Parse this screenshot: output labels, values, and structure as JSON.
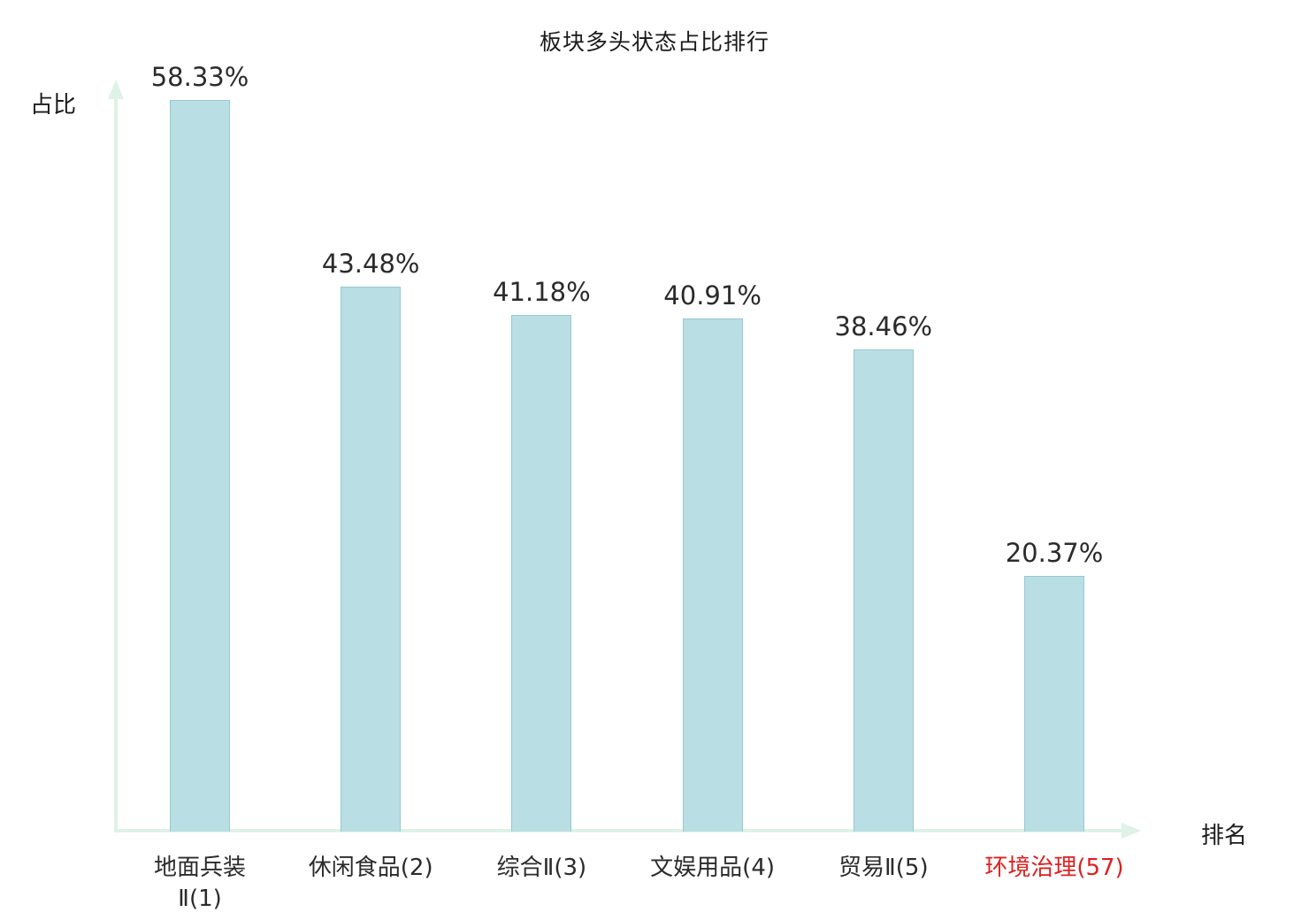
{
  "chart_data": {
    "type": "bar",
    "title": "板块多头状态占比排行",
    "ylabel": "占比",
    "xlabel": "排名",
    "categories": [
      "地面兵装\nⅡ(1)",
      "休闲食品(2)",
      "综合Ⅱ(3)",
      "文娱用品(4)",
      "贸易Ⅱ(5)",
      "环境治理(57)"
    ],
    "values": [
      58.33,
      43.48,
      41.18,
      40.91,
      38.46,
      20.37
    ],
    "value_labels": [
      "58.33%",
      "43.48%",
      "41.18%",
      "40.91%",
      "38.46%",
      "20.37%"
    ],
    "highlight_index": 5,
    "ylim": [
      0,
      61
    ],
    "grid": false,
    "legend": false,
    "colors": {
      "bar_fill": "#b9dee3",
      "bar_border": "#96cad1",
      "axis": "#def2e7",
      "label": "#2b2b2b",
      "highlight": "#e02020"
    }
  }
}
